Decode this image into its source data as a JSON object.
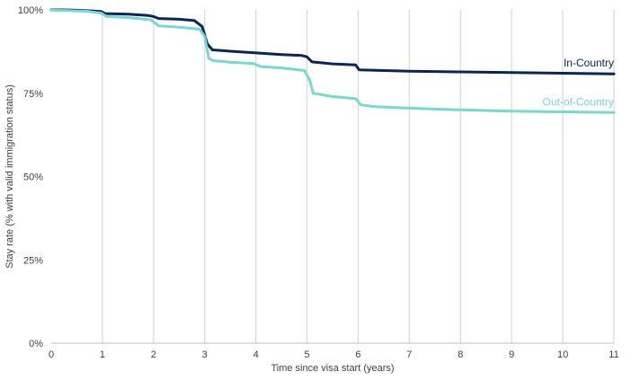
{
  "chart_data": {
    "type": "line",
    "title": "",
    "xlabel": "Time since visa start (years)",
    "ylabel": "Stay rate (% with valid immigration status)",
    "xlim": [
      0,
      11
    ],
    "ylim": [
      0,
      100
    ],
    "x_ticks": [
      0,
      1,
      2,
      3,
      4,
      5,
      6,
      7,
      8,
      9,
      10,
      11
    ],
    "y_ticks": [
      0,
      25,
      50,
      75,
      100
    ],
    "y_tick_labels": [
      "0%",
      "25%",
      "50%",
      "75%",
      "100%"
    ],
    "grid": "vertical",
    "series": [
      {
        "name": "In-Country",
        "color": "#0b2559",
        "x": [
          0,
          0.2,
          0.5,
          0.8,
          0.98,
          1.05,
          1.5,
          1.9,
          2.0,
          2.1,
          2.5,
          2.8,
          2.95,
          3.05,
          3.15,
          3.5,
          4.0,
          4.5,
          4.9,
          5.0,
          5.1,
          5.5,
          5.95,
          6.02,
          6.5,
          7.0,
          8.0,
          9.0,
          10.0,
          11.0
        ],
        "y": [
          100,
          100,
          99.9,
          99.7,
          99.5,
          98.9,
          98.7,
          98.3,
          98.0,
          97.4,
          97.2,
          96.8,
          95.0,
          89.8,
          88.0,
          87.6,
          87.1,
          86.6,
          86.3,
          85.9,
          84.4,
          83.8,
          83.5,
          82.0,
          81.8,
          81.6,
          81.4,
          81.2,
          81.0,
          80.8
        ]
      },
      {
        "name": "Out-of-Country",
        "color": "#79d8cf",
        "x": [
          0,
          0.3,
          0.7,
          0.98,
          1.08,
          1.5,
          1.95,
          2.1,
          2.5,
          2.9,
          3.0,
          3.08,
          3.15,
          3.5,
          3.95,
          4.1,
          4.5,
          4.95,
          5.05,
          5.12,
          5.5,
          5.95,
          6.05,
          6.3,
          7.0,
          8.0,
          9.0,
          10.0,
          11.0
        ],
        "y": [
          99.9,
          99.8,
          99.6,
          99.0,
          98.0,
          97.7,
          97.0,
          95.2,
          94.8,
          94.2,
          92.0,
          85.5,
          84.8,
          84.3,
          83.9,
          83.0,
          82.6,
          81.8,
          79.0,
          75.0,
          74.0,
          73.4,
          71.5,
          71.0,
          70.5,
          70.0,
          69.6,
          69.4,
          69.2
        ]
      }
    ],
    "annotations": [
      {
        "text": "In-Country",
        "x": 11,
        "y": 80.8,
        "color": "#0b2559"
      },
      {
        "text": "Out-of-Country",
        "x": 11,
        "y": 69.2,
        "color": "#79d8cf"
      }
    ],
    "colors": {
      "grid": "#d9d9d9",
      "axis": "#bfbfbf",
      "text": "#404040"
    }
  }
}
